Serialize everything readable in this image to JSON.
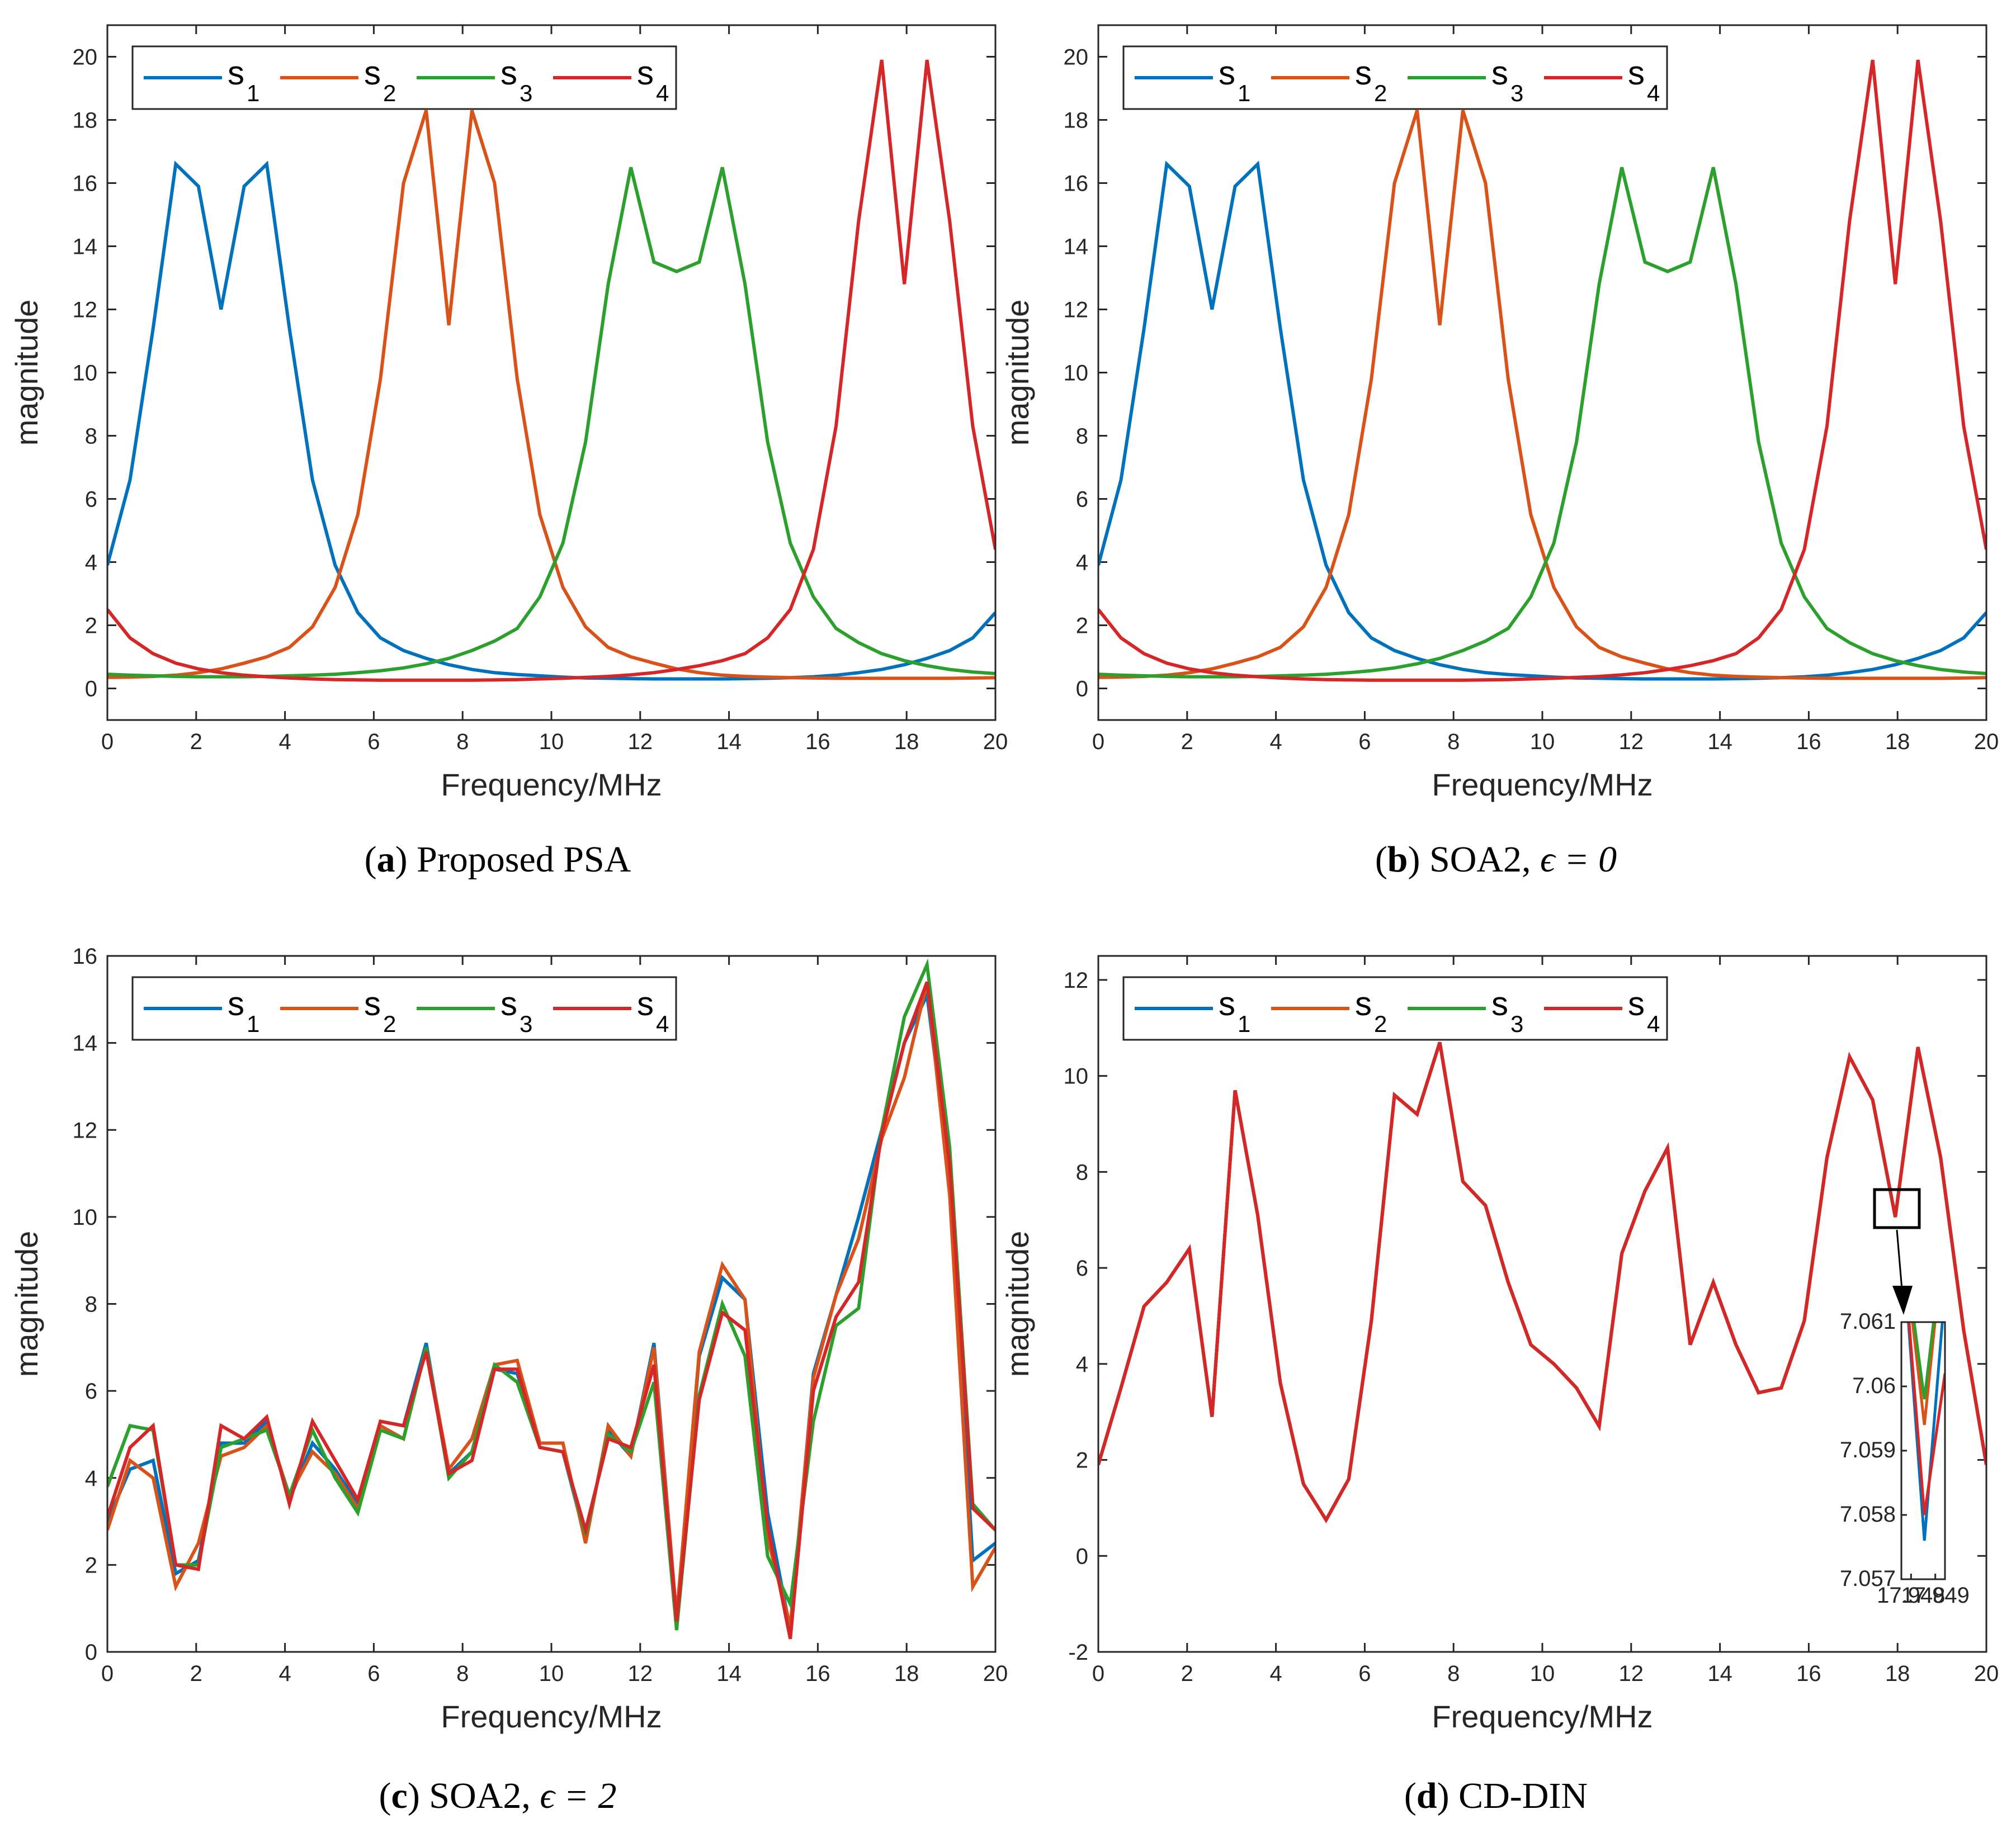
{
  "chart_data": [
    {
      "id": "a",
      "type": "line",
      "caption_letter": "a",
      "caption_text": "Proposed PSA",
      "caption_math": "",
      "xlabel": "Frequency/MHz",
      "ylabel": "magnitude",
      "xlim": [
        0,
        20
      ],
      "ylim": [
        -1,
        21
      ],
      "xticks": [
        0,
        2,
        4,
        6,
        8,
        10,
        12,
        14,
        16,
        18,
        20
      ],
      "yticks": [
        0,
        2,
        4,
        6,
        8,
        10,
        12,
        14,
        16,
        18,
        20
      ],
      "legend": "top-left",
      "x": [
        0,
        0.51,
        1.03,
        1.54,
        2.05,
        2.56,
        3.08,
        3.59,
        4.1,
        4.62,
        5.13,
        5.64,
        6.15,
        6.67,
        7.18,
        7.69,
        8.21,
        8.72,
        9.23,
        9.74,
        10.26,
        10.77,
        11.28,
        11.79,
        12.31,
        12.82,
        13.33,
        13.85,
        14.36,
        14.87,
        15.38,
        15.9,
        16.41,
        16.92,
        17.44,
        17.95,
        18.46,
        18.97,
        19.49,
        20
      ],
      "series": [
        {
          "name": "s",
          "sub": "1",
          "color": "#0072BD",
          "values": [
            3.9,
            6.6,
            11.4,
            16.6,
            15.9,
            12.0,
            15.9,
            16.6,
            11.4,
            6.6,
            3.9,
            2.4,
            1.6,
            1.2,
            0.95,
            0.75,
            0.6,
            0.5,
            0.44,
            0.4,
            0.36,
            0.33,
            0.32,
            0.31,
            0.3,
            0.3,
            0.3,
            0.3,
            0.31,
            0.32,
            0.34,
            0.37,
            0.42,
            0.5,
            0.6,
            0.75,
            0.95,
            1.2,
            1.6,
            2.4
          ]
        },
        {
          "name": "s",
          "sub": "2",
          "color": "#D95319",
          "values": [
            0.35,
            0.36,
            0.38,
            0.42,
            0.5,
            0.62,
            0.8,
            1.0,
            1.3,
            1.95,
            3.2,
            5.5,
            9.8,
            16.0,
            18.3,
            11.5,
            18.3,
            16.0,
            9.8,
            5.5,
            3.2,
            1.95,
            1.3,
            1.0,
            0.8,
            0.62,
            0.5,
            0.42,
            0.38,
            0.36,
            0.34,
            0.33,
            0.32,
            0.32,
            0.32,
            0.32,
            0.32,
            0.32,
            0.33,
            0.34
          ]
        },
        {
          "name": "s",
          "sub": "3",
          "color": "#2CA02C",
          "values": [
            0.45,
            0.42,
            0.4,
            0.38,
            0.37,
            0.37,
            0.37,
            0.38,
            0.4,
            0.42,
            0.45,
            0.5,
            0.56,
            0.65,
            0.78,
            0.95,
            1.2,
            1.5,
            1.9,
            2.9,
            4.6,
            7.8,
            12.8,
            16.5,
            13.5,
            13.2,
            13.5,
            16.5,
            12.8,
            7.8,
            4.6,
            2.9,
            1.9,
            1.45,
            1.1,
            0.88,
            0.72,
            0.6,
            0.52,
            0.47
          ]
        },
        {
          "name": "s",
          "sub": "4",
          "color": "#D62728",
          "values": [
            2.5,
            1.6,
            1.1,
            0.8,
            0.62,
            0.5,
            0.42,
            0.37,
            0.33,
            0.3,
            0.28,
            0.27,
            0.26,
            0.26,
            0.26,
            0.26,
            0.26,
            0.27,
            0.28,
            0.3,
            0.32,
            0.35,
            0.38,
            0.43,
            0.5,
            0.6,
            0.72,
            0.88,
            1.1,
            1.6,
            2.5,
            4.4,
            8.3,
            14.8,
            19.9,
            12.8,
            19.9,
            14.8,
            8.3,
            4.4
          ]
        }
      ]
    },
    {
      "id": "b",
      "type": "line",
      "caption_letter": "b",
      "caption_text": "SOA2,",
      "caption_math": "ϵ = 0",
      "xlabel": "Frequency/MHz",
      "ylabel": "magnitude",
      "xlim": [
        0,
        20
      ],
      "ylim": [
        -1,
        21
      ],
      "xticks": [
        0,
        2,
        4,
        6,
        8,
        10,
        12,
        14,
        16,
        18,
        20
      ],
      "yticks": [
        0,
        2,
        4,
        6,
        8,
        10,
        12,
        14,
        16,
        18,
        20
      ],
      "legend": "top-left",
      "x": [
        0,
        0.51,
        1.03,
        1.54,
        2.05,
        2.56,
        3.08,
        3.59,
        4.1,
        4.62,
        5.13,
        5.64,
        6.15,
        6.67,
        7.18,
        7.69,
        8.21,
        8.72,
        9.23,
        9.74,
        10.26,
        10.77,
        11.28,
        11.79,
        12.31,
        12.82,
        13.33,
        13.85,
        14.36,
        14.87,
        15.38,
        15.9,
        16.41,
        16.92,
        17.44,
        17.95,
        18.46,
        18.97,
        19.49,
        20
      ],
      "series": [
        {
          "name": "s",
          "sub": "1",
          "color": "#0072BD",
          "values": [
            3.9,
            6.6,
            11.4,
            16.6,
            15.9,
            12.0,
            15.9,
            16.6,
            11.4,
            6.6,
            3.9,
            2.4,
            1.6,
            1.2,
            0.95,
            0.75,
            0.6,
            0.5,
            0.44,
            0.4,
            0.36,
            0.33,
            0.32,
            0.31,
            0.3,
            0.3,
            0.3,
            0.3,
            0.31,
            0.32,
            0.34,
            0.37,
            0.42,
            0.5,
            0.6,
            0.75,
            0.95,
            1.2,
            1.6,
            2.4
          ]
        },
        {
          "name": "s",
          "sub": "2",
          "color": "#D95319",
          "values": [
            0.35,
            0.36,
            0.38,
            0.42,
            0.5,
            0.62,
            0.8,
            1.0,
            1.3,
            1.95,
            3.2,
            5.5,
            9.8,
            16.0,
            18.3,
            11.5,
            18.3,
            16.0,
            9.8,
            5.5,
            3.2,
            1.95,
            1.3,
            1.0,
            0.8,
            0.62,
            0.5,
            0.42,
            0.38,
            0.36,
            0.34,
            0.33,
            0.32,
            0.32,
            0.32,
            0.32,
            0.32,
            0.32,
            0.33,
            0.34
          ]
        },
        {
          "name": "s",
          "sub": "3",
          "color": "#2CA02C",
          "values": [
            0.45,
            0.42,
            0.4,
            0.38,
            0.37,
            0.37,
            0.37,
            0.38,
            0.4,
            0.42,
            0.45,
            0.5,
            0.56,
            0.65,
            0.78,
            0.95,
            1.2,
            1.5,
            1.9,
            2.9,
            4.6,
            7.8,
            12.8,
            16.5,
            13.5,
            13.2,
            13.5,
            16.5,
            12.8,
            7.8,
            4.6,
            2.9,
            1.9,
            1.45,
            1.1,
            0.88,
            0.72,
            0.6,
            0.52,
            0.47
          ]
        },
        {
          "name": "s",
          "sub": "4",
          "color": "#D62728",
          "values": [
            2.5,
            1.6,
            1.1,
            0.8,
            0.62,
            0.5,
            0.42,
            0.37,
            0.33,
            0.3,
            0.28,
            0.27,
            0.26,
            0.26,
            0.26,
            0.26,
            0.26,
            0.27,
            0.28,
            0.3,
            0.32,
            0.35,
            0.38,
            0.43,
            0.5,
            0.6,
            0.72,
            0.88,
            1.1,
            1.6,
            2.5,
            4.4,
            8.3,
            14.8,
            19.9,
            12.8,
            19.9,
            14.8,
            8.3,
            4.4
          ]
        }
      ]
    },
    {
      "id": "c",
      "type": "line",
      "caption_letter": "c",
      "caption_text": "SOA2,",
      "caption_math": "ϵ = 2",
      "xlabel": "Frequency/MHz",
      "ylabel": "magnitude",
      "xlim": [
        0,
        20
      ],
      "ylim": [
        0,
        16
      ],
      "xticks": [
        0,
        2,
        4,
        6,
        8,
        10,
        12,
        14,
        16,
        18,
        20
      ],
      "yticks": [
        0,
        2,
        4,
        6,
        8,
        10,
        12,
        14,
        16
      ],
      "legend": "top-left",
      "x": [
        0,
        0.51,
        1.03,
        1.54,
        2.05,
        2.56,
        3.08,
        3.59,
        4.1,
        4.62,
        5.13,
        5.64,
        6.15,
        6.67,
        7.18,
        7.69,
        8.21,
        8.72,
        9.23,
        9.74,
        10.26,
        10.77,
        11.28,
        11.79,
        12.31,
        12.82,
        13.33,
        13.85,
        14.36,
        14.87,
        15.38,
        15.9,
        16.41,
        16.92,
        17.44,
        17.95,
        18.46,
        18.97,
        19.49,
        20
      ],
      "series": [
        {
          "name": "s",
          "sub": "1",
          "color": "#0072BD",
          "values": [
            3.0,
            4.2,
            4.4,
            1.8,
            2.1,
            4.8,
            4.8,
            5.3,
            3.5,
            4.8,
            4.2,
            3.4,
            5.3,
            5.2,
            7.1,
            4.1,
            4.6,
            6.5,
            6.4,
            4.7,
            4.6,
            2.6,
            5.1,
            4.5,
            7.1,
            0.8,
            6.8,
            8.6,
            8.1,
            3.2,
            0.5,
            6.4,
            8.2,
            10.0,
            12.0,
            14.0,
            15.1,
            11.0,
            2.1,
            2.5
          ]
        },
        {
          "name": "s",
          "sub": "2",
          "color": "#D95319",
          "values": [
            2.8,
            4.4,
            4.0,
            1.5,
            2.5,
            4.5,
            4.7,
            5.2,
            3.6,
            4.6,
            4.1,
            3.3,
            5.2,
            4.9,
            7.0,
            4.2,
            4.9,
            6.6,
            6.7,
            4.8,
            4.8,
            2.5,
            5.2,
            4.5,
            7.0,
            0.8,
            6.9,
            8.9,
            8.1,
            2.6,
            0.6,
            6.3,
            8.2,
            9.5,
            11.8,
            13.2,
            15.4,
            10.5,
            1.5,
            2.4
          ]
        },
        {
          "name": "s",
          "sub": "3",
          "color": "#2CA02C",
          "values": [
            3.8,
            5.2,
            5.1,
            2.0,
            2.0,
            4.7,
            4.9,
            5.1,
            3.6,
            5.1,
            4.0,
            3.2,
            5.1,
            4.9,
            7.0,
            4.0,
            4.6,
            6.6,
            6.2,
            4.7,
            4.6,
            2.7,
            5.0,
            4.6,
            6.2,
            0.5,
            5.9,
            8.0,
            6.8,
            2.2,
            1.1,
            5.3,
            7.5,
            7.9,
            12.0,
            14.6,
            15.8,
            11.6,
            3.4,
            2.8
          ]
        },
        {
          "name": "s",
          "sub": "4",
          "color": "#D62728",
          "values": [
            3.1,
            4.7,
            5.2,
            2.0,
            1.9,
            5.2,
            4.9,
            5.4,
            3.4,
            5.3,
            4.4,
            3.5,
            5.3,
            5.2,
            6.9,
            4.1,
            4.4,
            6.5,
            6.5,
            4.7,
            4.6,
            2.8,
            4.9,
            4.7,
            6.6,
            0.7,
            5.8,
            7.8,
            7.4,
            2.9,
            0.3,
            6.0,
            7.7,
            8.5,
            11.9,
            14.0,
            15.4,
            11.2,
            3.3,
            2.8
          ]
        }
      ]
    },
    {
      "id": "d",
      "type": "line",
      "caption_letter": "d",
      "caption_text": "CD-DIN",
      "caption_math": "",
      "xlabel": "Frequency/MHz",
      "ylabel": "magnitude",
      "xlim": [
        0,
        20
      ],
      "ylim": [
        -2,
        12.5
      ],
      "xticks": [
        0,
        2,
        4,
        6,
        8,
        10,
        12,
        14,
        16,
        18,
        20
      ],
      "yticks": [
        -2,
        0,
        2,
        4,
        6,
        8,
        10,
        12
      ],
      "legend": "top-left",
      "x": [
        0,
        0.51,
        1.03,
        1.54,
        2.05,
        2.56,
        3.08,
        3.59,
        4.1,
        4.62,
        5.13,
        5.64,
        6.15,
        6.67,
        7.18,
        7.69,
        8.21,
        8.72,
        9.23,
        9.74,
        10.26,
        10.77,
        11.28,
        11.79,
        12.31,
        12.82,
        13.33,
        13.85,
        14.36,
        14.87,
        15.38,
        15.9,
        16.41,
        16.92,
        17.44,
        17.95,
        18.46,
        18.97,
        19.49,
        20
      ],
      "series": [
        {
          "name": "s",
          "sub": "1",
          "color": "#0072BD",
          "values": [
            1.9,
            3.5,
            5.2,
            5.7,
            6.4,
            2.9,
            9.7,
            7.1,
            3.6,
            1.5,
            0.75,
            1.6,
            4.9,
            9.6,
            9.2,
            10.7,
            7.8,
            7.3,
            5.7,
            4.4,
            4.0,
            3.5,
            2.7,
            6.3,
            7.6,
            8.5,
            4.4,
            5.7,
            4.4,
            3.4,
            3.5,
            4.9,
            8.3,
            10.4,
            9.5,
            7.06,
            10.6,
            8.3,
            4.7,
            1.9
          ]
        },
        {
          "name": "s",
          "sub": "2",
          "color": "#D95319",
          "values": [
            1.9,
            3.5,
            5.2,
            5.7,
            6.4,
            2.9,
            9.7,
            7.1,
            3.6,
            1.5,
            0.75,
            1.6,
            4.9,
            9.6,
            9.2,
            10.7,
            7.8,
            7.3,
            5.7,
            4.4,
            4.0,
            3.5,
            2.7,
            6.3,
            7.6,
            8.5,
            4.4,
            5.7,
            4.4,
            3.4,
            3.5,
            4.9,
            8.3,
            10.4,
            9.5,
            7.06,
            10.6,
            8.3,
            4.7,
            1.9
          ]
        },
        {
          "name": "s",
          "sub": "3",
          "color": "#2CA02C",
          "values": [
            1.9,
            3.5,
            5.2,
            5.7,
            6.4,
            2.9,
            9.7,
            7.1,
            3.6,
            1.5,
            0.75,
            1.6,
            4.9,
            9.6,
            9.2,
            10.7,
            7.8,
            7.3,
            5.7,
            4.4,
            4.0,
            3.5,
            2.7,
            6.3,
            7.6,
            8.5,
            4.4,
            5.7,
            4.4,
            3.4,
            3.5,
            4.9,
            8.3,
            10.4,
            9.5,
            7.06,
            10.6,
            8.3,
            4.7,
            1.9
          ]
        },
        {
          "name": "s",
          "sub": "4",
          "color": "#D62728",
          "values": [
            1.9,
            3.5,
            5.2,
            5.7,
            6.4,
            2.9,
            9.7,
            7.1,
            3.6,
            1.5,
            0.75,
            1.6,
            4.9,
            9.6,
            9.2,
            10.7,
            7.8,
            7.3,
            5.7,
            4.4,
            4.0,
            3.5,
            2.7,
            6.3,
            7.6,
            8.5,
            4.4,
            5.7,
            4.4,
            3.4,
            3.5,
            4.9,
            8.3,
            10.4,
            9.5,
            7.06,
            10.6,
            8.3,
            4.7,
            1.9
          ]
        }
      ],
      "inset": {
        "xlim": [
          17.9476,
          17.9494
        ],
        "ylim": [
          7.057,
          7.061
        ],
        "xticks": [
          17.948,
          17.949
        ],
        "xtick_labels": [
          "17.948",
          "17.949"
        ],
        "yticks": [
          7.057,
          7.058,
          7.059,
          7.06,
          7.061
        ],
        "ytick_labels": [
          "7.057",
          "7.058",
          "7.059",
          "7.06",
          "7.061"
        ],
        "series": [
          {
            "sub": "1",
            "color": "#0072BD",
            "x": [
              17.9476,
              17.94855,
              17.9494
            ],
            "values": [
              7.0625,
              7.0576,
              7.0615
            ]
          },
          {
            "sub": "2",
            "color": "#D95319",
            "x": [
              17.9476,
              17.94855,
              17.9494
            ],
            "values": [
              7.0625,
              7.0594,
              7.0625
            ]
          },
          {
            "sub": "3",
            "color": "#2CA02C",
            "x": [
              17.9476,
              17.94855,
              17.9494
            ],
            "values": [
              7.0625,
              7.0598,
              7.0625
            ]
          },
          {
            "sub": "4",
            "color": "#D62728",
            "x": [
              17.9476,
              17.94855,
              17.9494
            ],
            "values": [
              7.0625,
              7.058,
              7.0602
            ]
          }
        ]
      }
    }
  ]
}
